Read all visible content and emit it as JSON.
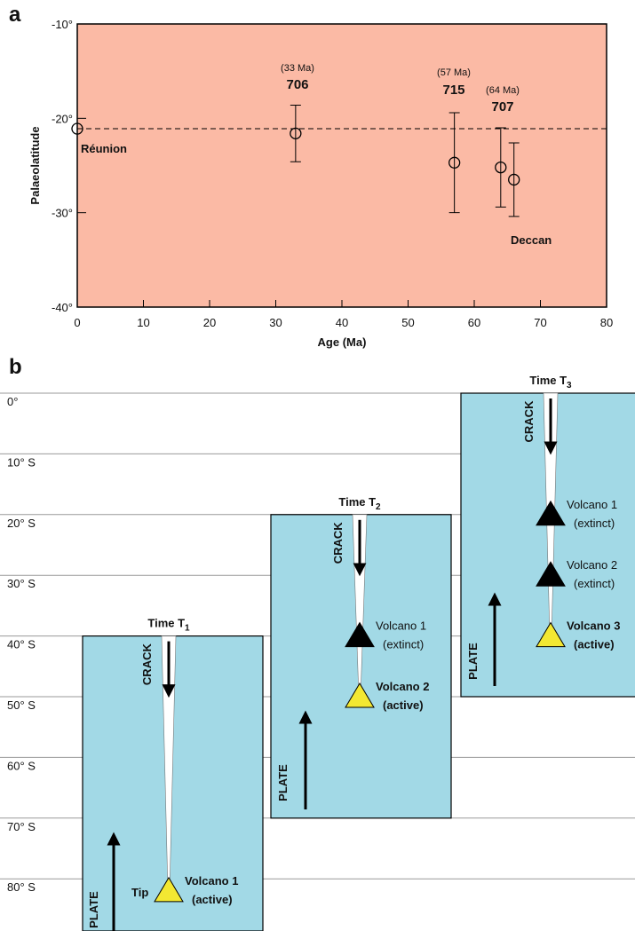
{
  "panel_label": "a",
  "chart_data": {
    "type": "scatter",
    "xlabel": "Age (Ma)",
    "ylabel": "Palaeolatitude",
    "xlim": [
      0,
      80
    ],
    "xticks": [
      0,
      10,
      20,
      30,
      40,
      50,
      60,
      70,
      80
    ],
    "ylim": [
      -40,
      -10
    ],
    "yticks": [
      {
        "value": -40,
        "label": "-40°"
      },
      {
        "value": -30,
        "label": "-30°"
      },
      {
        "value": -20,
        "label": "-20°"
      },
      {
        "value": -10,
        "label": "-10°"
      }
    ],
    "background": "#fbbaa5",
    "reference_line": -21.1,
    "series": [
      {
        "x": [
          0,
          33,
          57,
          64,
          66
        ],
        "values": [
          -21.1,
          -21.6,
          -24.7,
          -25.2,
          -26.5
        ],
        "errors": [
          null,
          3,
          5.3,
          4.2,
          3.9
        ]
      }
    ],
    "annotations": [
      "(33 Ma)",
      "706",
      "(57 Ma)",
      "715",
      "(64 Ma)",
      "707",
      "Réunion",
      "Deccan"
    ]
  },
  "diagram": {
    "label": "b",
    "latitudes": [
      "0°",
      "10° S",
      "20° S",
      "30° S",
      "40° S",
      "50° S",
      "60° S",
      "70° S",
      "80° S"
    ],
    "panels": [
      {
        "title": "Time T",
        "sub": "1",
        "crack": "CRACK",
        "plate": "PLATE",
        "tip": "Tip",
        "volcanoes": [
          {
            "name": "Volcano 1",
            "status": "(active)"
          }
        ]
      },
      {
        "title": "Time T",
        "sub": "2",
        "crack": "CRACK",
        "plate": "PLATE",
        "volcanoes": [
          {
            "name": "Volcano 1",
            "status": "(extinct)"
          },
          {
            "name": "Volcano 2",
            "status": "(active)"
          }
        ]
      },
      {
        "title": "Time T",
        "sub": "3",
        "crack": "CRACK",
        "plate": "PLATE",
        "volcanoes": [
          {
            "name": "Volcano 1",
            "status": "(extinct)"
          },
          {
            "name": "Volcano 2",
            "status": "(extinct)"
          },
          {
            "name": "Volcano 3",
            "status": "(active)"
          }
        ]
      }
    ]
  }
}
